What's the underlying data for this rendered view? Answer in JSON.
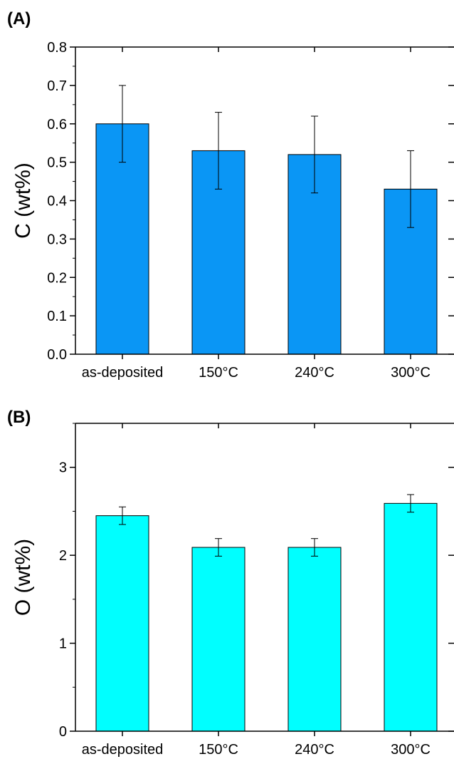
{
  "chart_data": [
    {
      "type": "bar",
      "panel_label": "(A)",
      "categories": [
        "as-deposited",
        "150°C",
        "240°C",
        "300°C"
      ],
      "values": [
        0.6,
        0.53,
        0.52,
        0.43
      ],
      "errors": [
        0.1,
        0.1,
        0.1,
        0.1
      ],
      "ylabel": "C (wt%)",
      "ylim": [
        0,
        0.8
      ],
      "yticks": [
        0.0,
        0.1,
        0.2,
        0.3,
        0.4,
        0.5,
        0.6,
        0.7,
        0.8
      ],
      "ytick_labels": [
        "0.0",
        "0.1",
        "0.2",
        "0.3",
        "0.4",
        "0.5",
        "0.6",
        "0.7",
        "0.8"
      ],
      "bar_color": "#0a96f5",
      "grid": false
    },
    {
      "type": "bar",
      "panel_label": "(B)",
      "categories": [
        "as-deposited",
        "150°C",
        "240°C",
        "300°C"
      ],
      "values": [
        2.45,
        2.09,
        2.09,
        2.59
      ],
      "errors": [
        0.1,
        0.1,
        0.1,
        0.1
      ],
      "ylabel": "O (wt%)",
      "ylim": [
        0,
        3.5
      ],
      "yticks": [
        0,
        1,
        2,
        3
      ],
      "ytick_labels": [
        "0",
        "1",
        "2",
        "3"
      ],
      "bar_color": "#00ffff",
      "grid": false
    }
  ]
}
